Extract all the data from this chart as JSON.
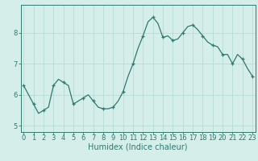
{
  "title": "",
  "xlabel": "Humidex (Indice chaleur)",
  "ylabel": "",
  "x_values": [
    0,
    0.5,
    1,
    1.5,
    2,
    2.5,
    3,
    3.5,
    4,
    4.5,
    5,
    5.5,
    6,
    6.5,
    7,
    7.5,
    8,
    8.5,
    9,
    9.5,
    10,
    10.5,
    11,
    11.5,
    12,
    12.5,
    13,
    13.5,
    14,
    14.5,
    15,
    15.5,
    16,
    16.5,
    17,
    17.5,
    18,
    18.5,
    19,
    19.5,
    20,
    20.5,
    21,
    21.5,
    22,
    22.5,
    23
  ],
  "y_values": [
    6.3,
    6.0,
    5.7,
    5.4,
    5.5,
    5.6,
    6.3,
    6.5,
    6.4,
    6.3,
    5.7,
    5.8,
    5.9,
    6.0,
    5.8,
    5.6,
    5.55,
    5.55,
    5.6,
    5.8,
    6.1,
    6.6,
    7.0,
    7.5,
    7.9,
    8.35,
    8.5,
    8.3,
    7.85,
    7.9,
    7.75,
    7.8,
    8.0,
    8.2,
    8.25,
    8.1,
    7.9,
    7.7,
    7.6,
    7.55,
    7.3,
    7.3,
    7.0,
    7.3,
    7.15,
    6.85,
    6.6
  ],
  "line_color": "#2d7a6e",
  "marker": "+",
  "marker_size": 3.5,
  "marker_every": 2,
  "bg_color": "#d5eeea",
  "grid_color": "#b0d8d2",
  "spine_color": "#2d7a6e",
  "tick_label_color": "#2d7a6e",
  "xlabel_color": "#2d7a6e",
  "ylim": [
    4.8,
    8.9
  ],
  "yticks": [
    5,
    6,
    7,
    8
  ],
  "xlim": [
    -0.3,
    23.3
  ],
  "xticks": [
    0,
    1,
    2,
    3,
    4,
    5,
    6,
    7,
    8,
    9,
    10,
    11,
    12,
    13,
    14,
    15,
    16,
    17,
    18,
    19,
    20,
    21,
    22,
    23
  ],
  "xlabel_fontsize": 7,
  "tick_fontsize": 6,
  "linewidth": 0.9
}
